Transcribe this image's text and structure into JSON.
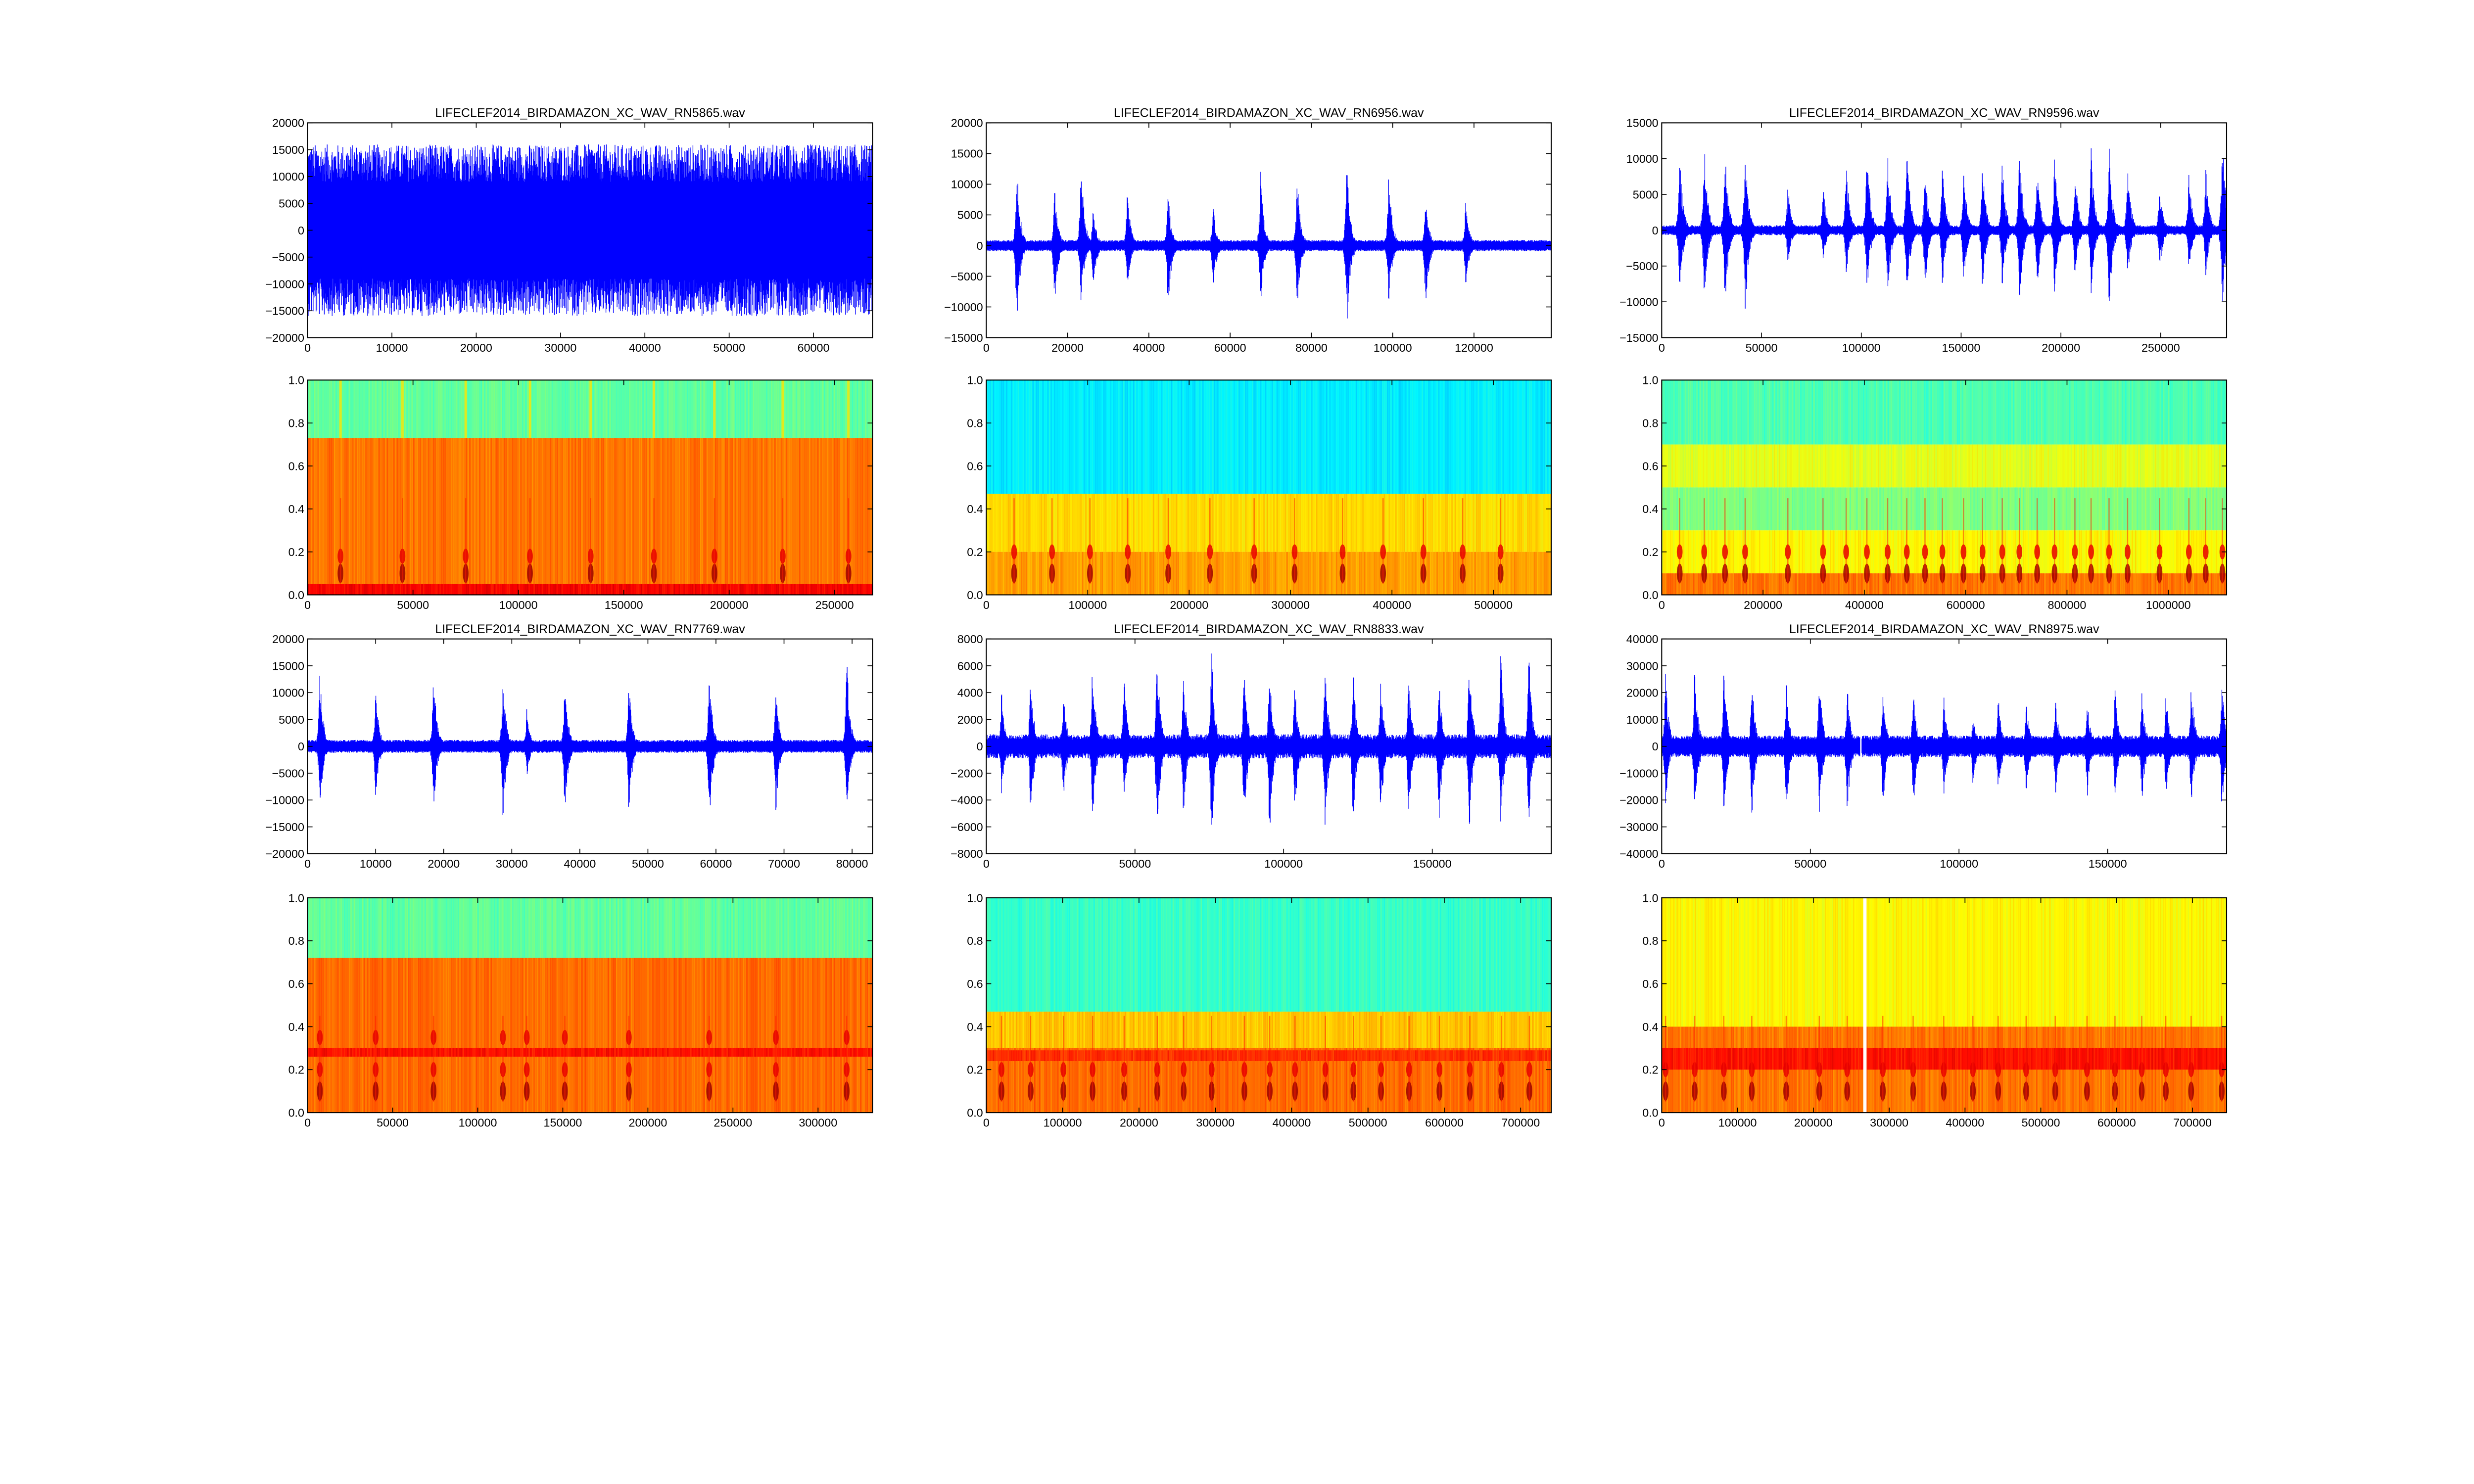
{
  "chart_data": [
    {
      "type": "line",
      "title": "LIFECLEF2014_BIRDAMAZON_XC_WAV_RN5865.wav",
      "xlabel": "",
      "ylabel": "",
      "xlim": [
        0,
        67000
      ],
      "ylim": [
        -20000,
        20000
      ],
      "xticks": [
        0,
        10000,
        20000,
        30000,
        40000,
        50000,
        60000
      ],
      "yticks": [
        -20000,
        -15000,
        -10000,
        -5000,
        0,
        5000,
        10000,
        15000,
        20000
      ],
      "noise": [
        9000,
        16000
      ],
      "clip": 16000,
      "bursts": []
    },
    {
      "type": "line",
      "title": "LIFECLEF2014_BIRDAMAZON_XC_WAV_RN6956.wav",
      "xlabel": "",
      "ylabel": "",
      "xlim": [
        0,
        139000
      ],
      "ylim": [
        -15000,
        20000
      ],
      "xticks": [
        0,
        20000,
        40000,
        60000,
        80000,
        100000,
        120000
      ],
      "yticks": [
        -15000,
        -10000,
        -5000,
        0,
        5000,
        10000,
        15000,
        20000
      ],
      "noise": [
        600,
        900
      ],
      "bursts": [
        [
          7500,
          14000,
          -14000
        ],
        [
          16800,
          10700,
          -10200
        ],
        [
          23300,
          15200,
          -10300
        ],
        [
          26300,
          6800,
          -7500
        ],
        [
          34700,
          9300,
          -7200
        ],
        [
          44700,
          9300,
          -10900
        ],
        [
          55800,
          7000,
          -7800
        ],
        [
          67500,
          12400,
          -10000
        ],
        [
          76500,
          12700,
          -11400
        ],
        [
          88700,
          14500,
          -13900
        ],
        [
          99000,
          13400,
          -10500
        ],
        [
          108100,
          8600,
          -10900
        ],
        [
          118000,
          8800,
          -7300
        ]
      ]
    },
    {
      "type": "line",
      "title": "LIFECLEF2014_BIRDAMAZON_XC_WAV_RN9596.wav",
      "xlabel": "",
      "ylabel": "",
      "xlim": [
        0,
        283000
      ],
      "ylim": [
        -15000,
        15000
      ],
      "xticks": [
        0,
        50000,
        100000,
        150000,
        200000,
        250000
      ],
      "yticks": [
        -15000,
        -10000,
        -5000,
        0,
        5000,
        10000,
        15000
      ],
      "noise": [
        400,
        700
      ],
      "bursts": [
        [
          9000,
          10800,
          -10100
        ],
        [
          21300,
          12800,
          -11300
        ],
        [
          31700,
          12500,
          -12100
        ],
        [
          41800,
          12000,
          -12400
        ],
        [
          63200,
          6500,
          -5500
        ],
        [
          80800,
          6500,
          -4700
        ],
        [
          92400,
          9900,
          -7600
        ],
        [
          102800,
          12200,
          -9900
        ],
        [
          113200,
          10800,
          -10200
        ],
        [
          122800,
          14000,
          -11100
        ],
        [
          131900,
          9200,
          -9300
        ],
        [
          140600,
          9100,
          -8500
        ],
        [
          151200,
          9100,
          -8400
        ],
        [
          160700,
          9900,
          -9500
        ],
        [
          170600,
          10100,
          -8700
        ],
        [
          179200,
          12300,
          -11400
        ],
        [
          188100,
          9500,
          -9100
        ],
        [
          196800,
          10900,
          -9600
        ],
        [
          207000,
          9300,
          -7100
        ],
        [
          215100,
          11900,
          -9400
        ],
        [
          224100,
          12300,
          -12400
        ],
        [
          233400,
          9500,
          -7000
        ],
        [
          249400,
          6400,
          -6100
        ],
        [
          264100,
          8500,
          -6600
        ],
        [
          272500,
          9200,
          -7000
        ],
        [
          280900,
          14400,
          -12400
        ]
      ]
    },
    {
      "type": "heatmap",
      "title": "",
      "xlim": [
        0,
        268000
      ],
      "ylim": [
        0,
        1
      ],
      "xticks": [
        0,
        50000,
        100000,
        150000,
        200000,
        250000
      ],
      "yticks": [
        0.0,
        0.2,
        0.4,
        0.6,
        0.8,
        1.0
      ],
      "bands": [
        [
          0.73,
          1.0,
          0.47
        ],
        [
          0.05,
          0.73,
          0.76
        ],
        [
          0.0,
          0.05,
          0.88
        ]
      ],
      "events": [
        15600,
        45000,
        75000,
        105500,
        134300,
        164300,
        193000,
        225400,
        256600
      ],
      "event_freqs": [
        0.1,
        0.18
      ],
      "hf_lines": true
    },
    {
      "type": "heatmap",
      "title": "",
      "xlim": [
        0,
        557000
      ],
      "ylim": [
        0,
        1
      ],
      "xticks": [
        0,
        100000,
        200000,
        300000,
        400000,
        500000
      ],
      "yticks": [
        0.0,
        0.2,
        0.4,
        0.6,
        0.8,
        1.0
      ],
      "bands": [
        [
          0.47,
          1.0,
          0.36
        ],
        [
          0.2,
          0.47,
          0.66
        ],
        [
          0.0,
          0.2,
          0.72
        ]
      ],
      "events": [
        27400,
        64800,
        102200,
        139500,
        179400,
        220500,
        264100,
        304000,
        351300,
        391200,
        431000,
        469700,
        507100
      ],
      "event_freqs": [
        0.1,
        0.2
      ]
    },
    {
      "type": "heatmap",
      "title": "",
      "xlim": [
        0,
        1115000
      ],
      "ylim": [
        0,
        1
      ],
      "xticks": [
        0,
        200000,
        400000,
        600000,
        800000,
        1000000
      ],
      "yticks": [
        0.0,
        0.2,
        0.4,
        0.6,
        0.8,
        1.0
      ],
      "bands": [
        [
          0.7,
          1.0,
          0.45
        ],
        [
          0.5,
          0.7,
          0.6
        ],
        [
          0.3,
          0.5,
          0.5
        ],
        [
          0.1,
          0.3,
          0.63
        ],
        [
          0.0,
          0.1,
          0.76
        ]
      ],
      "events": [
        35500,
        83900,
        124900,
        164700,
        249000,
        318400,
        364100,
        405000,
        446000,
        483800,
        519700,
        554000,
        595700,
        633200,
        672200,
        706000,
        741100,
        775400,
        815600,
        847500,
        883000,
        919600,
        982600,
        1040600,
        1073700,
        1106700
      ],
      "event_freqs": [
        0.1,
        0.2
      ]
    },
    {
      "type": "line",
      "title": "LIFECLEF2014_BIRDAMAZON_XC_WAV_RN7769.wav",
      "xlabel": "",
      "ylabel": "",
      "xlim": [
        0,
        83000
      ],
      "ylim": [
        -20000,
        20000
      ],
      "xticks": [
        0,
        10000,
        20000,
        30000,
        40000,
        50000,
        60000,
        70000,
        80000
      ],
      "yticks": [
        -20000,
        -15000,
        -10000,
        -5000,
        0,
        5000,
        10000,
        15000,
        20000
      ],
      "noise": [
        800,
        1200
      ],
      "bursts": [
        [
          1800,
          14000,
          -12500
        ],
        [
          10000,
          11500,
          -11000
        ],
        [
          18500,
          14500,
          -13000
        ],
        [
          28700,
          14000,
          -14500
        ],
        [
          32200,
          7000,
          -6000
        ],
        [
          37800,
          13500,
          -14000
        ],
        [
          47200,
          12500,
          -14000
        ],
        [
          59000,
          15000,
          -16500
        ],
        [
          68800,
          12000,
          -13000
        ],
        [
          79200,
          18000,
          -14000
        ]
      ]
    },
    {
      "type": "line",
      "title": "LIFECLEF2014_BIRDAMAZON_XC_WAV_RN8833.wav",
      "xlabel": "",
      "ylabel": "",
      "xlim": [
        0,
        190000
      ],
      "ylim": [
        -8000,
        8000
      ],
      "xticks": [
        0,
        50000,
        100000,
        150000
      ],
      "yticks": [
        -8000,
        -6000,
        -4000,
        -2000,
        0,
        2000,
        4000,
        6000,
        8000
      ],
      "noise": [
        500,
        900
      ],
      "bursts": [
        [
          5100,
          4300,
          -4000
        ],
        [
          14900,
          5700,
          -5900
        ],
        [
          25900,
          4500,
          -4300
        ],
        [
          35700,
          7000,
          -6300
        ],
        [
          46300,
          5800,
          -4400
        ],
        [
          57400,
          7300,
          -7700
        ],
        [
          66300,
          5700,
          -5900
        ],
        [
          75700,
          7800,
          -7400
        ],
        [
          86700,
          6600,
          -6300
        ],
        [
          95200,
          6300,
          -7400
        ],
        [
          103700,
          5000,
          -5800
        ],
        [
          113900,
          6600,
          -6800
        ],
        [
          123300,
          6200,
          -6200
        ],
        [
          132600,
          5600,
          -6000
        ],
        [
          142000,
          5800,
          -5700
        ],
        [
          152200,
          5500,
          -6200
        ],
        [
          162400,
          7300,
          -7000
        ],
        [
          173000,
          7600,
          -6300
        ],
        [
          182400,
          7900,
          -6700
        ]
      ]
    },
    {
      "type": "line",
      "title": "LIFECLEF2014_BIRDAMAZON_XC_WAV_RN8975.wav",
      "xlabel": "",
      "ylabel": "",
      "xlim": [
        0,
        190000
      ],
      "ylim": [
        -40000,
        40000
      ],
      "xticks": [
        0,
        50000,
        100000,
        150000
      ],
      "yticks": [
        -40000,
        -30000,
        -20000,
        -10000,
        0,
        10000,
        20000,
        30000,
        40000
      ],
      "noise": [
        2500,
        4000
      ],
      "gap": 67000,
      "bursts": [
        [
          1300,
          28000,
          -24000
        ],
        [
          11100,
          31000,
          -30000
        ],
        [
          20900,
          30000,
          -30000
        ],
        [
          30300,
          28000,
          -29000
        ],
        [
          41900,
          24000,
          -27000
        ],
        [
          53000,
          28000,
          -29000
        ],
        [
          62400,
          25000,
          -27000
        ],
        [
          74400,
          24000,
          -25000
        ],
        [
          84600,
          24000,
          -27000
        ],
        [
          94900,
          19000,
          -20000
        ],
        [
          104700,
          14000,
          -16000
        ],
        [
          113200,
          20000,
          -20000
        ],
        [
          122600,
          20000,
          -21000
        ],
        [
          132400,
          19000,
          -20000
        ],
        [
          143100,
          20000,
          -20000
        ],
        [
          152500,
          24000,
          -22000
        ],
        [
          161500,
          22000,
          -22000
        ],
        [
          169600,
          21000,
          -20000
        ],
        [
          178100,
          28000,
          -26000
        ],
        [
          188400,
          28000,
          -28000
        ]
      ]
    },
    {
      "type": "heatmap",
      "title": "",
      "xlim": [
        0,
        332000
      ],
      "ylim": [
        0,
        1
      ],
      "xticks": [
        0,
        50000,
        100000,
        150000,
        200000,
        250000,
        300000
      ],
      "yticks": [
        0.0,
        0.2,
        0.4,
        0.6,
        0.8,
        1.0
      ],
      "bands": [
        [
          0.72,
          1.0,
          0.47
        ],
        [
          0.0,
          0.72,
          0.77
        ],
        [
          0.26,
          0.3,
          0.86
        ]
      ],
      "events": [
        7200,
        40000,
        74000,
        114800,
        128800,
        151200,
        188800,
        236000,
        275200,
        316800
      ],
      "event_freqs": [
        0.1,
        0.2,
        0.35
      ]
    },
    {
      "type": "heatmap",
      "title": "",
      "xlim": [
        0,
        740000
      ],
      "ylim": [
        0,
        1
      ],
      "xticks": [
        0,
        100000,
        200000,
        300000,
        400000,
        500000,
        600000,
        700000
      ],
      "yticks": [
        0.0,
        0.2,
        0.4,
        0.6,
        0.8,
        1.0
      ],
      "bands": [
        [
          0.47,
          1.0,
          0.43
        ],
        [
          0.3,
          0.47,
          0.68
        ],
        [
          0.0,
          0.3,
          0.77
        ],
        [
          0.24,
          0.29,
          0.83
        ]
      ],
      "events": [
        19900,
        58100,
        101000,
        139200,
        180600,
        223900,
        258600,
        295200,
        338100,
        371300,
        404400,
        444200,
        480900,
        517100,
        553800,
        593600,
        633400,
        674700,
        711400
      ],
      "event_freqs": [
        0.1,
        0.2
      ]
    },
    {
      "type": "heatmap",
      "title": "",
      "xlim": [
        0,
        745000
      ],
      "ylim": [
        0,
        1
      ],
      "xticks": [
        0,
        100000,
        200000,
        300000,
        400000,
        500000,
        600000,
        700000
      ],
      "yticks": [
        0.0,
        0.2,
        0.4,
        0.6,
        0.8,
        1.0
      ],
      "bands": [
        [
          0.4,
          1.0,
          0.63
        ],
        [
          0.0,
          0.4,
          0.76
        ],
        [
          0.2,
          0.3,
          0.86
        ]
      ],
      "gap": 268000,
      "events": [
        5100,
        43500,
        81900,
        118800,
        164200,
        207800,
        244600,
        291600,
        331600,
        372000,
        410400,
        443700,
        480600,
        519000,
        560900,
        597800,
        633100,
        664800,
        698200,
        738500
      ],
      "event_freqs": [
        0.1,
        0.2
      ]
    }
  ]
}
